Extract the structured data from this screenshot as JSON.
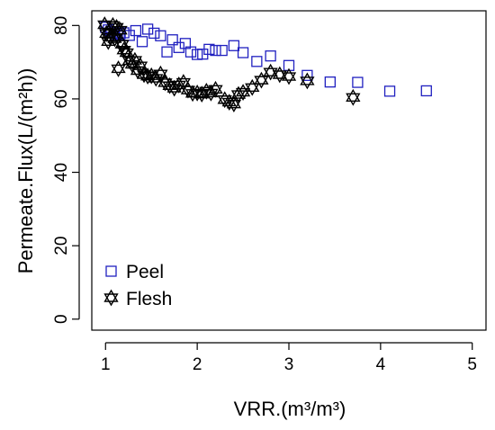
{
  "chart_data": {
    "type": "scatter",
    "xlabel": "VRR.(m³/m³)",
    "ylabel": "Permeate.Flux(L/(m²h))",
    "xlim": [
      0.85,
      5.15
    ],
    "ylim": [
      -3,
      84
    ],
    "xticks": [
      1,
      2,
      3,
      4,
      5
    ],
    "yticks": [
      0,
      20,
      40,
      60,
      80
    ],
    "grid": false,
    "legend_position": "bottom-left",
    "series": [
      {
        "name": "Peel",
        "marker": "open-square",
        "color": "#2020c0",
        "points": [
          [
            1.0,
            79.5
          ],
          [
            1.03,
            78.8
          ],
          [
            1.06,
            78.3
          ],
          [
            1.1,
            78.0
          ],
          [
            1.13,
            77.5
          ],
          [
            1.16,
            77.8
          ],
          [
            1.2,
            78.0
          ],
          [
            1.26,
            77.3
          ],
          [
            1.33,
            78.6
          ],
          [
            1.4,
            75.6
          ],
          [
            1.46,
            79.0
          ],
          [
            1.53,
            77.9
          ],
          [
            1.6,
            77.2
          ],
          [
            1.67,
            72.8
          ],
          [
            1.73,
            76.1
          ],
          [
            1.8,
            74.0
          ],
          [
            1.87,
            75.1
          ],
          [
            1.93,
            72.8
          ],
          [
            2.0,
            72.1
          ],
          [
            2.06,
            72.2
          ],
          [
            2.13,
            73.5
          ],
          [
            2.2,
            73.2
          ],
          [
            2.27,
            73.2
          ],
          [
            2.4,
            74.5
          ],
          [
            2.5,
            72.6
          ],
          [
            2.65,
            70.2
          ],
          [
            2.8,
            71.7
          ],
          [
            3.0,
            69.1
          ],
          [
            3.2,
            66.4
          ],
          [
            3.45,
            64.6
          ],
          [
            3.75,
            64.5
          ],
          [
            4.1,
            62.1
          ],
          [
            4.5,
            62.2
          ]
        ]
      },
      {
        "name": "Flesh",
        "marker": "hexagram",
        "color": "#000000",
        "points": [
          [
            0.99,
            80.2
          ],
          [
            1.01,
            77.8
          ],
          [
            1.03,
            75.6
          ],
          [
            1.05,
            76.8
          ],
          [
            1.08,
            80.0
          ],
          [
            1.1,
            76.4
          ],
          [
            1.12,
            79.5
          ],
          [
            1.14,
            68.2
          ],
          [
            1.16,
            78.7
          ],
          [
            1.18,
            74.9
          ],
          [
            1.2,
            73.3
          ],
          [
            1.23,
            72.6
          ],
          [
            1.26,
            70.4
          ],
          [
            1.29,
            69.4
          ],
          [
            1.32,
            70.5
          ],
          [
            1.35,
            67.7
          ],
          [
            1.38,
            69.0
          ],
          [
            1.42,
            66.6
          ],
          [
            1.46,
            66.2
          ],
          [
            1.5,
            66.3
          ],
          [
            1.55,
            65.6
          ],
          [
            1.6,
            66.8
          ],
          [
            1.65,
            64.4
          ],
          [
            1.7,
            63.6
          ],
          [
            1.75,
            62.9
          ],
          [
            1.8,
            63.8
          ],
          [
            1.85,
            64.5
          ],
          [
            1.9,
            62.4
          ],
          [
            1.95,
            61.5
          ],
          [
            2.0,
            61.6
          ],
          [
            2.05,
            61.3
          ],
          [
            2.1,
            62.1
          ],
          [
            2.15,
            61.6
          ],
          [
            2.2,
            62.6
          ],
          [
            2.3,
            59.8
          ],
          [
            2.35,
            59.1
          ],
          [
            2.4,
            58.6
          ],
          [
            2.45,
            61.2
          ],
          [
            2.5,
            61.8
          ],
          [
            2.6,
            63.1
          ],
          [
            2.7,
            65.1
          ],
          [
            2.8,
            67.3
          ],
          [
            2.9,
            66.6
          ],
          [
            3.0,
            66.1
          ],
          [
            3.2,
            64.9
          ],
          [
            3.7,
            60.4
          ]
        ]
      }
    ]
  }
}
